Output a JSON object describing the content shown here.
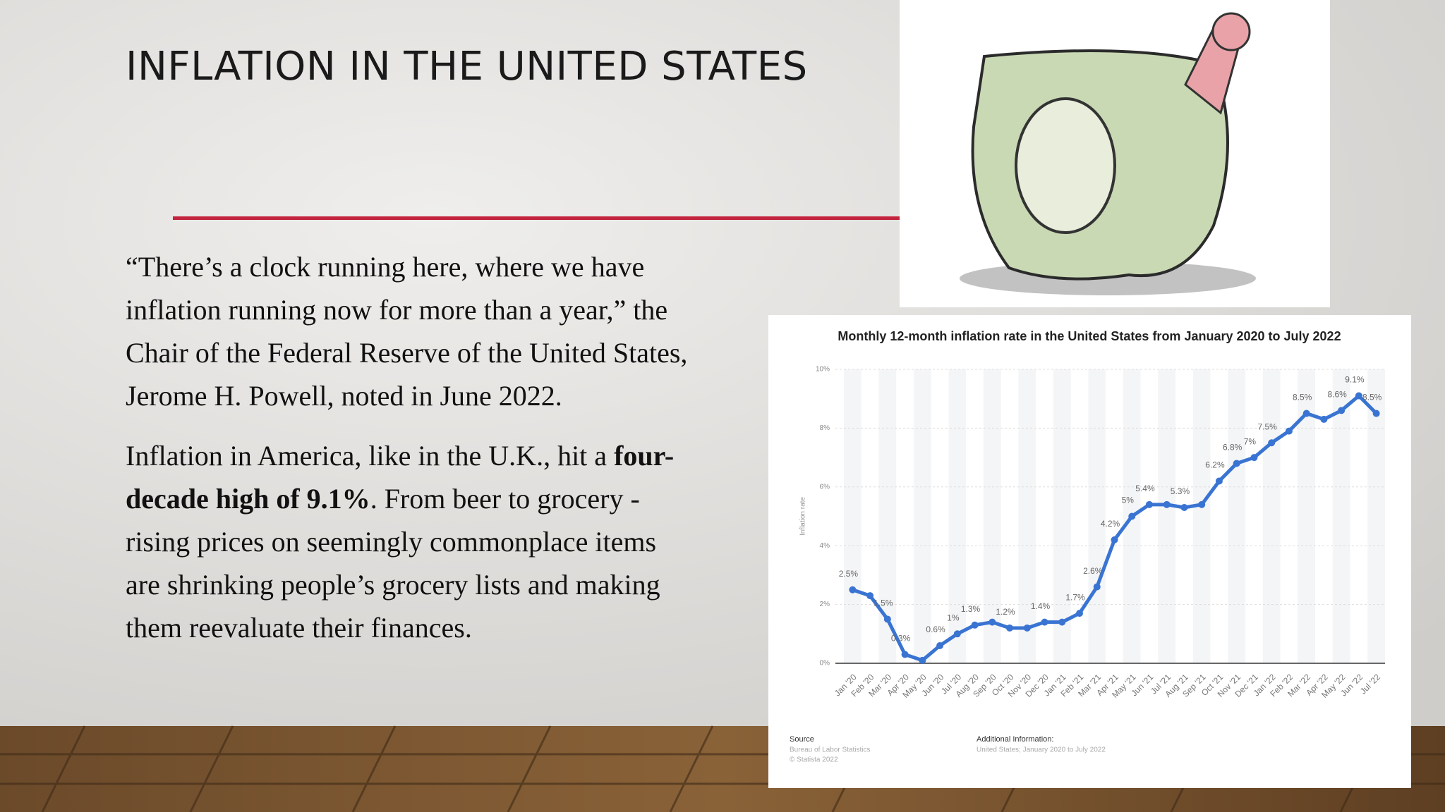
{
  "slide": {
    "title": "INFLATION IN THE UNITED STATES",
    "paragraph_1": "“There’s a clock running here, where we have inflation running now for more than a year,” the Chair of the Federal Reserve of the United States, Jerome H. Powell, noted in June 2022.",
    "paragraph_2": {
      "before": "Inflation in America, like in the U.K., hit a ",
      "bold": "four-decade high of 9.1%",
      "after": ". From beer to grocery - rising prices on seemingly commonplace items are shrinking people’s grocery lists and making them reevaluate their finances."
    }
  },
  "chart_data": {
    "type": "line",
    "title": "Monthly 12-month inflation rate in the United States from January 2020 to July 2022",
    "y_label": "Inflation rate",
    "categories": [
      "Jan '20",
      "Feb '20",
      "Mar '20",
      "Apr '20",
      "May '20",
      "Jun '20",
      "Jul '20",
      "Aug '20",
      "Sep '20",
      "Oct '20",
      "Nov '20",
      "Dec '20",
      "Jan '21",
      "Feb '21",
      "Mar '21",
      "Apr '21",
      "May '21",
      "Jun '21",
      "Jul '21",
      "Aug '21",
      "Sep '21",
      "Oct '21",
      "Nov '21",
      "Dec '21",
      "Jan '22",
      "Feb '22",
      "Mar '22",
      "Apr '22",
      "May '22",
      "Jun '22",
      "Jul '22"
    ],
    "values": [
      2.5,
      2.3,
      1.5,
      0.3,
      0.1,
      0.6,
      1,
      1.3,
      1.4,
      1.2,
      1.2,
      1.4,
      1.4,
      1.7,
      2.6,
      4.2,
      5,
      5.4,
      5.4,
      5.3,
      5.4,
      6.2,
      6.8,
      7,
      7.5,
      7.9,
      8.5,
      8.3,
      8.6,
      9.1,
      8.5
    ],
    "value_labels": [
      "2.5%",
      null,
      "1.5%",
      "0.3%",
      null,
      "0.6%",
      "1%",
      "1.3%",
      null,
      "1.2%",
      null,
      "1.4%",
      null,
      "1.7%",
      "2.6%",
      "4.2%",
      "5%",
      "5.4%",
      null,
      "5.3%",
      null,
      "6.2%",
      "6.8%",
      "7%",
      "7.5%",
      null,
      "8.5%",
      null,
      "8.6%",
      "9.1%",
      "8.5%"
    ],
    "color": "#3a74d2",
    "ylim": [
      0,
      10
    ],
    "yticks": [
      {
        "value": 0,
        "label": "0%"
      },
      {
        "value": 2,
        "label": "2%"
      },
      {
        "value": 4,
        "label": "4%"
      },
      {
        "value": 6,
        "label": "6%"
      },
      {
        "value": 8,
        "label": "8%"
      },
      {
        "value": 10,
        "label": "10%"
      }
    ],
    "grid": true,
    "source_heading": "Source",
    "source_lines": [
      "Bureau of Labor Statistics",
      "© Statista 2022"
    ],
    "info_heading": "Additional Information:",
    "info_lines": [
      "United States; January 2020 to July 2022"
    ]
  }
}
